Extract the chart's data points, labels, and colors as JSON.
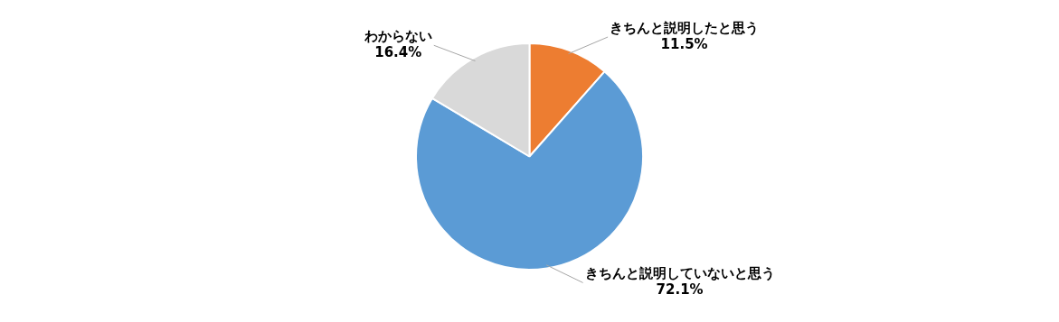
{
  "chart_data": {
    "type": "pie",
    "categories": [
      "きちんと説明したと思う",
      "きちんと説明していないと思う",
      "わからない"
    ],
    "values": [
      11.5,
      72.1,
      16.4
    ],
    "value_labels": [
      "11.5%",
      "72.1%",
      "16.4%"
    ],
    "colors": [
      "#ed7d31",
      "#5b9bd5",
      "#d9d9d9"
    ],
    "legend": false
  }
}
